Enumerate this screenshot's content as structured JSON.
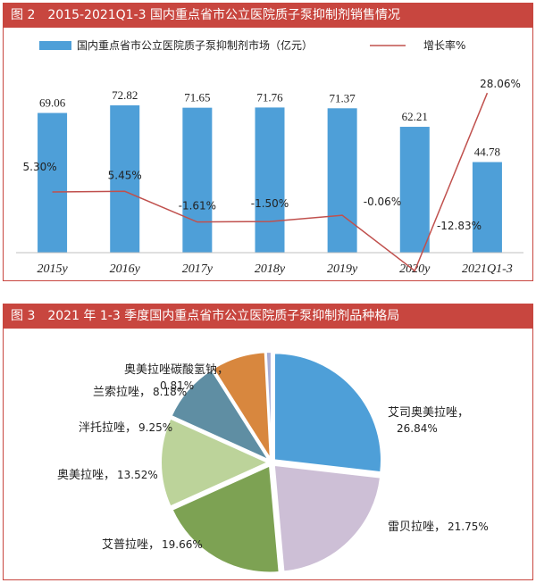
{
  "chart_data": [
    {
      "type": "bar",
      "title": "图 2　2015-2021Q1-3 国内重点省市公立医院质子泵抑制剂销售情况",
      "categories": [
        "2015y",
        "2016y",
        "2017y",
        "2018y",
        "2019y",
        "2020y",
        "2021Q1-3"
      ],
      "series": [
        {
          "name": "国内重点省市公立医院质子泵抑制剂市场（亿元）",
          "type": "bar",
          "color": "#4e9fd8",
          "values": [
            69.06,
            72.82,
            71.65,
            71.76,
            71.37,
            62.21,
            44.78
          ],
          "labels": [
            "69.06",
            "72.82",
            "71.65",
            "71.76",
            "71.37",
            "62.21",
            "44.78"
          ]
        },
        {
          "name": "增长率%",
          "type": "line",
          "color": "#c0504d",
          "values": [
            5.3,
            5.45,
            -1.61,
            -1.5,
            -0.06,
            -12.83,
            28.06
          ],
          "labels": [
            "5.30%",
            "5.45%",
            "-1.61%",
            "-1.50%",
            "-0.06%",
            "-12.83%",
            "28.06%"
          ]
        }
      ],
      "legend": "top"
    },
    {
      "type": "pie",
      "title": "图 3　2021 年 1-3 季度国内重点省市公立医院质子泵抑制剂品种格局",
      "slices": [
        {
          "name": "艾司奥美拉唑",
          "value": 26.84,
          "label": "26.84%",
          "color": "#4e9fd8"
        },
        {
          "name": "雷贝拉唑",
          "value": 21.75,
          "label": "21.75%",
          "color": "#cdbfd6"
        },
        {
          "name": "艾普拉唑",
          "value": 19.66,
          "label": "19.66%",
          "color": "#7da253"
        },
        {
          "name": "奥美拉唑",
          "value": 13.52,
          "label": "13.52%",
          "color": "#bcd39a"
        },
        {
          "name": "泮托拉唑",
          "value": 9.25,
          "label": "9.25%",
          "color": "#5f8ea3"
        },
        {
          "name": "兰索拉唑",
          "value": 8.18,
          "label": "8.18%",
          "color": "#d8873e"
        },
        {
          "name": "奥美拉唑碳酸氢钠",
          "value": 0.81,
          "label": "0.81%",
          "color": "#a9aed6"
        }
      ]
    }
  ]
}
